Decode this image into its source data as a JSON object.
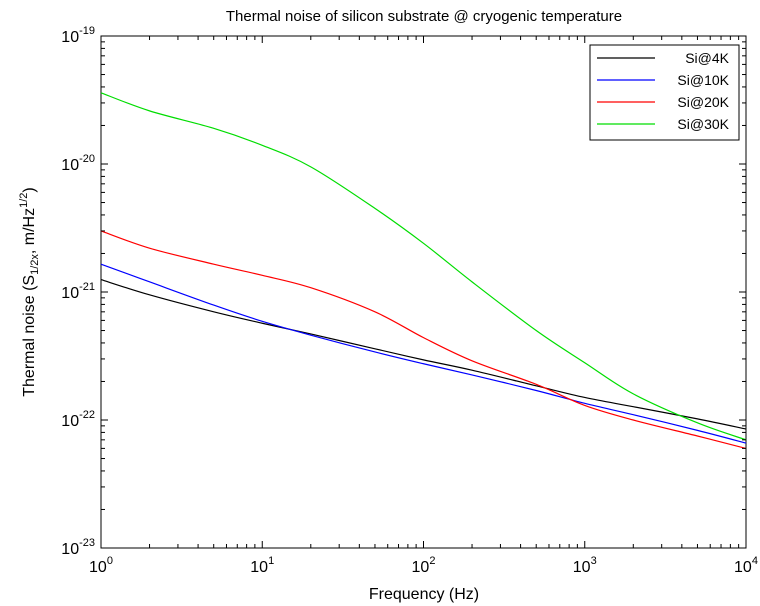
{
  "chart_data": {
    "type": "line",
    "title": "Thermal noise of silicon substrate @ cryogenic temperature",
    "xlabel": "Frequency (Hz)",
    "ylabel": {
      "prefix": "Thermal noise (S",
      "sub": "1/2x",
      "mid": ", m/Hz",
      "sup": "1/2",
      "suffix": ")"
    },
    "xscale": "log",
    "yscale": "log",
    "xlim": [
      1,
      10000
    ],
    "ylim": [
      1e-23,
      1e-19
    ],
    "grid": false,
    "legend_position": "top-right",
    "x_ticks": [
      {
        "base": "10",
        "exp": "0"
      },
      {
        "base": "10",
        "exp": "1"
      },
      {
        "base": "10",
        "exp": "2"
      },
      {
        "base": "10",
        "exp": "3"
      },
      {
        "base": "10",
        "exp": "4"
      }
    ],
    "y_ticks": [
      {
        "base": "10",
        "exp": "-23"
      },
      {
        "base": "10",
        "exp": "-22"
      },
      {
        "base": "10",
        "exp": "-21"
      },
      {
        "base": "10",
        "exp": "-20"
      },
      {
        "base": "10",
        "exp": "-19"
      }
    ],
    "x": [
      1,
      2,
      5,
      10,
      20,
      50,
      100,
      200,
      500,
      1000,
      2000,
      5000,
      10000
    ],
    "series": [
      {
        "name": "Si@4K",
        "color": "#000000",
        "values": [
          1.25e-21,
          9.5e-22,
          7e-22,
          5.7e-22,
          4.7e-22,
          3.6e-22,
          2.95e-22,
          2.45e-22,
          1.85e-22,
          1.5e-22,
          1.27e-22,
          1.02e-22,
          8.5e-23
        ]
      },
      {
        "name": "Si@10K",
        "color": "#0000ff",
        "values": [
          1.65e-21,
          1.2e-21,
          7.9e-22,
          5.9e-22,
          4.6e-22,
          3.4e-22,
          2.75e-22,
          2.25e-22,
          1.7e-22,
          1.35e-22,
          1.1e-22,
          8.3e-23,
          6.6e-23
        ]
      },
      {
        "name": "Si@20K",
        "color": "#ff0000",
        "values": [
          3e-21,
          2.2e-21,
          1.65e-21,
          1.35e-21,
          1.08e-21,
          7e-22,
          4.4e-22,
          2.9e-22,
          1.9e-22,
          1.3e-22,
          1e-22,
          7.5e-23,
          6e-23
        ]
      },
      {
        "name": "Si@30K",
        "color": "#00dd00",
        "values": [
          3.6e-20,
          2.6e-20,
          1.9e-20,
          1.4e-20,
          9.5e-21,
          4.5e-21,
          2.4e-21,
          1.2e-21,
          5e-22,
          2.8e-22,
          1.6e-22,
          9.5e-23,
          7e-23
        ]
      }
    ]
  }
}
